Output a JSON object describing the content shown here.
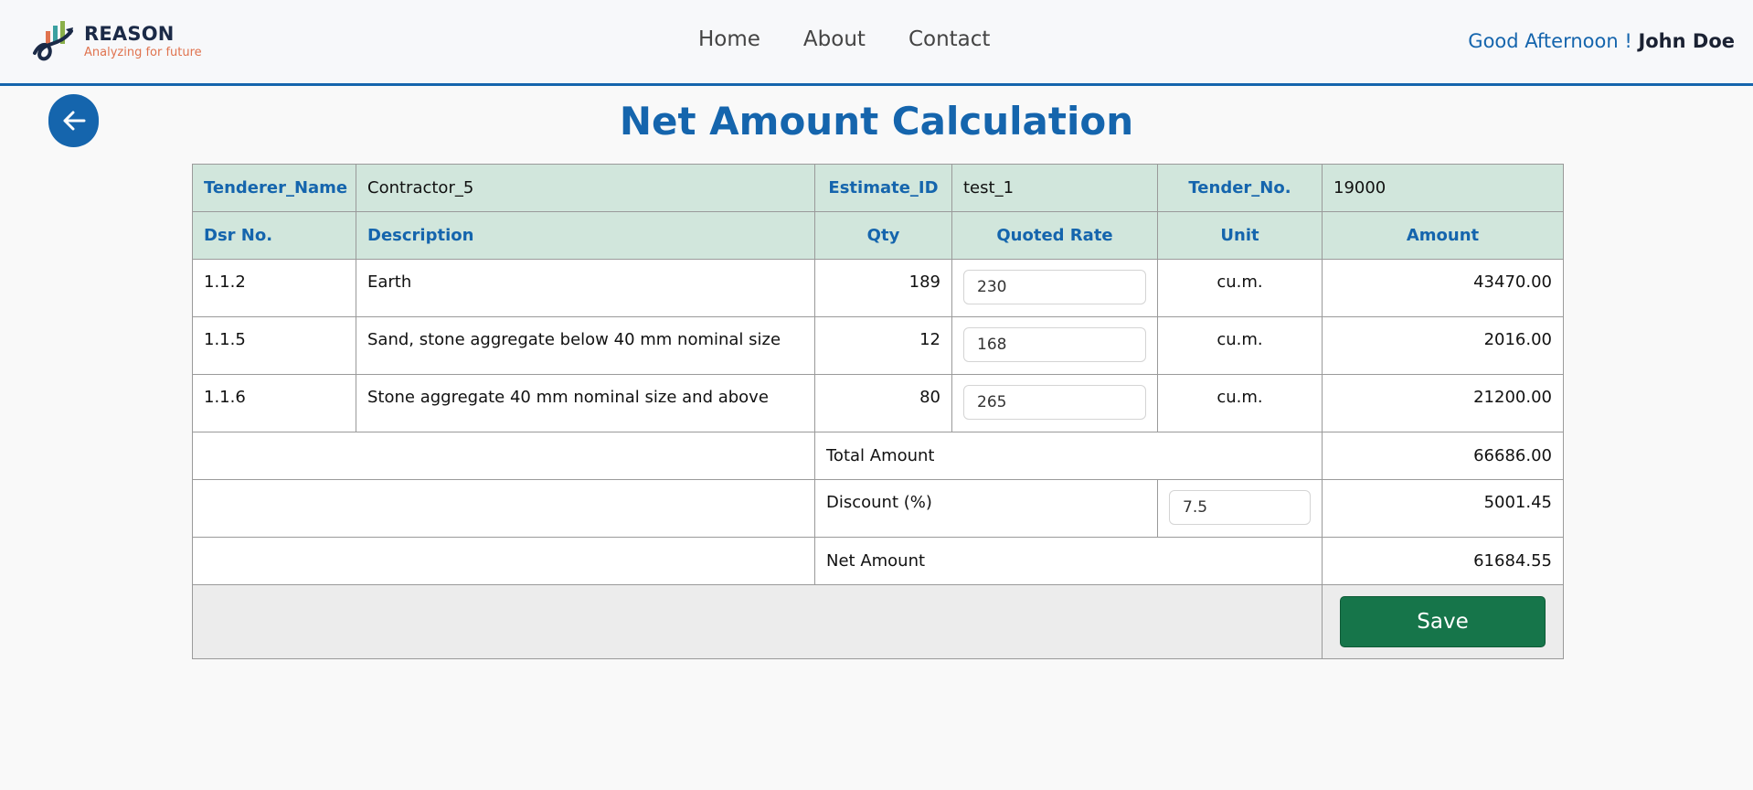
{
  "header": {
    "brand": "REASON",
    "tagline": "Analyzing for future",
    "nav": [
      "Home",
      "About",
      "Contact"
    ],
    "greeting": "Good Afternoon !",
    "user": "John Doe"
  },
  "page": {
    "title": "Net Amount Calculation"
  },
  "info": {
    "tenderer_label": "Tenderer_Name",
    "tenderer_value": "Contractor_5",
    "estimate_label": "Estimate_ID",
    "estimate_value": "test_1",
    "tender_label": "Tender_No.",
    "tender_value": "19000"
  },
  "columns": [
    "Dsr No.",
    "Description",
    "Qty",
    "Quoted Rate",
    "Unit",
    "Amount"
  ],
  "rows": [
    {
      "dsr": "1.1.2",
      "description": "Earth",
      "qty": "189",
      "rate": "230",
      "unit": "cu.m.",
      "amount": "43470.00"
    },
    {
      "dsr": "1.1.5",
      "description": "Sand, stone aggregate below 40 mm nominal size",
      "qty": "12",
      "rate": "168",
      "unit": "cu.m.",
      "amount": "2016.00"
    },
    {
      "dsr": "1.1.6",
      "description": "Stone aggregate 40 mm nominal size and above",
      "qty": "80",
      "rate": "265",
      "unit": "cu.m.",
      "amount": "21200.00"
    }
  ],
  "summary": {
    "total_label": "Total Amount",
    "total_value": "66686.00",
    "discount_label": "Discount (%)",
    "discount_input": "7.5",
    "discount_value": "5001.45",
    "net_label": "Net Amount",
    "net_value": "61684.55"
  },
  "save_label": "Save",
  "colors": {
    "primary": "#1565ad",
    "header_bg": "#d1e6dc",
    "save": "#16754a"
  }
}
